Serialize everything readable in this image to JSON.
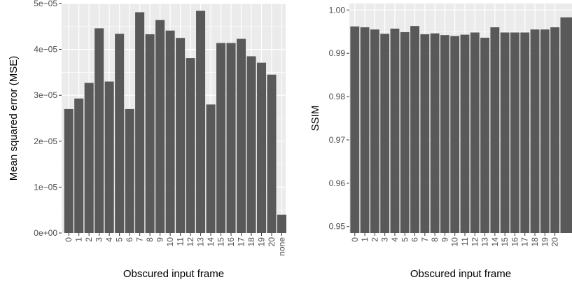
{
  "chart_data": [
    {
      "type": "bar",
      "xlabel": "Obscured input frame",
      "ylabel": "Mean squared error (MSE)",
      "ylim": [
        0,
        5e-05
      ],
      "yticks": [
        0,
        1e-05,
        2e-05,
        3e-05,
        4e-05,
        5e-05
      ],
      "yticklabels": [
        "0e+00",
        "1e−05",
        "2e−05",
        "3e−05",
        "4e−05",
        "5e−05"
      ],
      "grid": true,
      "bar_color": "#595959",
      "panel_color": "#ebebeb",
      "categories": [
        "0",
        "1",
        "2",
        "3",
        "4",
        "5",
        "6",
        "7",
        "8",
        "9",
        "10",
        "11",
        "12",
        "13",
        "14",
        "15",
        "16",
        "17",
        "18",
        "19",
        "20",
        "none"
      ],
      "values": [
        2.7e-05,
        2.93e-05,
        3.27e-05,
        4.46e-05,
        3.3e-05,
        4.34e-05,
        2.7e-05,
        4.81e-05,
        4.33e-05,
        4.64e-05,
        4.41e-05,
        4.25e-05,
        3.81e-05,
        4.84e-05,
        2.8e-05,
        4.14e-05,
        4.14e-05,
        4.23e-05,
        3.85e-05,
        3.71e-05,
        3.45e-05,
        4e-06
      ]
    },
    {
      "type": "bar",
      "xlabel": "Obscured input frame",
      "ylabel": "SSIM",
      "ylim": [
        0.9485,
        1.0015
      ],
      "yticks": [
        0.95,
        0.96,
        0.97,
        0.98,
        0.99,
        1.0
      ],
      "yticklabels": [
        "0.95",
        "0.96",
        "0.97",
        "0.98",
        "0.99",
        "1.00"
      ],
      "grid": true,
      "bar_color": "#595959",
      "panel_color": "#ebebeb",
      "categories": [
        "0",
        "1",
        "2",
        "3",
        "4",
        "5",
        "6",
        "7",
        "8",
        "9",
        "10",
        "11",
        "12",
        "13",
        "14",
        "15",
        "16",
        "17",
        "18",
        "19",
        "20"
      ],
      "values": [
        0.9962,
        0.996,
        0.9955,
        0.9945,
        0.9957,
        0.9949,
        0.9963,
        0.9944,
        0.9946,
        0.9942,
        0.994,
        0.9943,
        0.9948,
        0.9936,
        0.996,
        0.9948,
        0.9948,
        0.9948,
        0.9955,
        0.9955,
        0.996
      ],
      "partial_bar_value": 0.9983
    }
  ]
}
